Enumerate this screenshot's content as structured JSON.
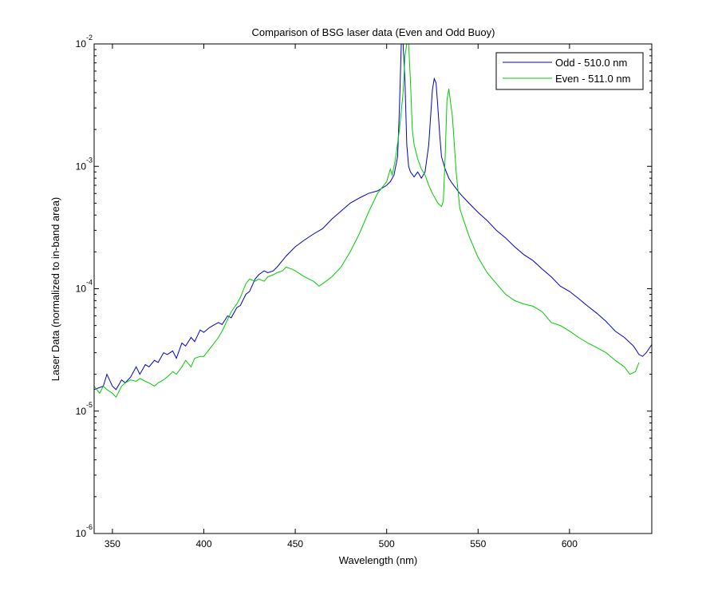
{
  "chart_data": {
    "type": "line",
    "title": "Comparison of BSG laser data (Even and Odd Buoy)",
    "xlabel": "Wavelength (nm)",
    "ylabel": "Laser Data (normalized to in-band area)",
    "xlim": [
      340,
      645
    ],
    "ylim": [
      1e-06,
      0.01
    ],
    "y_scale": "log",
    "x_ticks": [
      350,
      400,
      450,
      500,
      550,
      600
    ],
    "y_ticks": [
      {
        "base": "10",
        "exp": "-6",
        "value": 1e-06
      },
      {
        "base": "10",
        "exp": "-5",
        "value": 1e-05
      },
      {
        "base": "10",
        "exp": "-4",
        "value": 0.0001
      },
      {
        "base": "10",
        "exp": "-3",
        "value": 0.001
      },
      {
        "base": "10",
        "exp": "-2",
        "value": 0.01
      }
    ],
    "grid": false,
    "legend_position": "top-right",
    "series": [
      {
        "name": "Odd - 510.0 nm",
        "color": "#0000cc",
        "x": [
          340,
          345,
          347,
          350,
          352,
          355,
          357,
          360,
          363,
          365,
          368,
          370,
          373,
          375,
          378,
          380,
          383,
          385,
          388,
          390,
          393,
          395,
          398,
          400,
          403,
          405,
          408,
          410,
          413,
          415,
          418,
          420,
          423,
          425,
          428,
          430,
          433,
          435,
          438,
          440,
          443,
          445,
          450,
          455,
          460,
          465,
          470,
          475,
          480,
          485,
          490,
          495,
          500,
          502,
          504,
          506,
          507,
          508,
          509,
          510,
          511,
          512,
          513,
          515,
          517,
          519,
          521,
          523,
          525,
          526,
          527,
          528,
          529,
          530,
          532,
          534,
          536,
          540,
          545,
          550,
          555,
          560,
          565,
          570,
          575,
          580,
          585,
          590,
          595,
          600,
          605,
          610,
          615,
          620,
          625,
          630,
          635,
          638,
          640,
          642,
          645
        ],
        "y": [
          1.5e-05,
          1.6e-05,
          2e-05,
          1.6e-05,
          1.5e-05,
          1.8e-05,
          1.7e-05,
          1.9e-05,
          2.3e-05,
          2e-05,
          2.4e-05,
          2.3e-05,
          2.6e-05,
          2.5e-05,
          3e-05,
          2.9e-05,
          3.1e-05,
          2.7e-05,
          3.6e-05,
          3.4e-05,
          4e-05,
          3.7e-05,
          4.6e-05,
          4.4e-05,
          4.8e-05,
          5e-05,
          5.3e-05,
          5.1e-05,
          6e-05,
          5.8e-05,
          7e-05,
          7.3e-05,
          9e-05,
          9.5e-05,
          0.00012,
          0.00013,
          0.00014,
          0.000135,
          0.00014,
          0.00015,
          0.00017,
          0.000185,
          0.00022,
          0.00025,
          0.00028,
          0.00031,
          0.00037,
          0.00043,
          0.0005,
          0.00055,
          0.0006,
          0.00063,
          0.0007,
          0.00075,
          0.00085,
          0.0012,
          0.003,
          0.01,
          0.01,
          0.005,
          0.0015,
          0.001,
          0.0009,
          0.00082,
          0.0009,
          0.0008,
          0.0009,
          0.0015,
          0.0042,
          0.0052,
          0.0048,
          0.003,
          0.0018,
          0.0012,
          0.00095,
          0.0008,
          0.00072,
          0.0006,
          0.0005,
          0.00042,
          0.00036,
          0.0003,
          0.00026,
          0.00022,
          0.00019,
          0.00017,
          0.000145,
          0.000125,
          0.000105,
          9.5e-05,
          8.3e-05,
          7.2e-05,
          6.3e-05,
          5.4e-05,
          4.5e-05,
          4e-05,
          3.4e-05,
          2.9e-05,
          2.8e-05,
          3e-05,
          3.5e-05
        ]
      },
      {
        "name": "Even - 511.0 nm",
        "color": "#00cc00",
        "x": [
          340,
          343,
          345,
          347,
          350,
          352,
          355,
          357,
          360,
          363,
          365,
          368,
          370,
          373,
          375,
          378,
          380,
          383,
          385,
          388,
          390,
          393,
          395,
          398,
          400,
          403,
          405,
          408,
          410,
          413,
          415,
          418,
          420,
          423,
          425,
          428,
          430,
          433,
          435,
          438,
          440,
          443,
          445,
          448,
          450,
          455,
          460,
          463,
          465,
          470,
          475,
          480,
          485,
          490,
          495,
          500,
          502,
          503,
          504,
          505,
          507,
          509,
          510,
          511,
          512,
          513,
          514,
          515,
          517,
          519,
          521,
          523,
          525,
          528,
          530,
          531,
          532,
          533,
          534,
          536,
          538,
          540,
          545,
          550,
          555,
          560,
          565,
          570,
          575,
          580,
          585,
          590,
          595,
          600,
          605,
          610,
          615,
          620,
          625,
          630,
          633,
          636,
          638
        ],
        "y": [
          1.6e-05,
          1.4e-05,
          1.6e-05,
          1.5e-05,
          1.4e-05,
          1.3e-05,
          1.6e-05,
          1.7e-05,
          1.8e-05,
          1.75e-05,
          1.85e-05,
          1.75e-05,
          1.7e-05,
          1.6e-05,
          1.7e-05,
          1.8e-05,
          1.9e-05,
          2.1e-05,
          2e-05,
          2.3e-05,
          2.6e-05,
          2.3e-05,
          2.7e-05,
          2.8e-05,
          2.8e-05,
          3.2e-05,
          3.5e-05,
          4e-05,
          4.5e-05,
          5.6e-05,
          6.5e-05,
          7.5e-05,
          8.5e-05,
          0.00011,
          0.00012,
          0.000115,
          0.00012,
          0.000115,
          0.000125,
          0.00013,
          0.000135,
          0.00014,
          0.00015,
          0.000145,
          0.00014,
          0.000125,
          0.000115,
          0.000105,
          0.00011,
          0.000125,
          0.00015,
          0.0002,
          0.00028,
          0.00042,
          0.0006,
          0.00075,
          0.00095,
          0.00085,
          0.001,
          0.0012,
          0.002,
          0.004,
          0.008,
          0.01,
          0.01,
          0.005,
          0.002,
          0.0015,
          0.00115,
          0.00095,
          0.00085,
          0.0007,
          0.0006,
          0.0005,
          0.00047,
          0.00052,
          0.0012,
          0.0035,
          0.0043,
          0.0025,
          0.0009,
          0.00045,
          0.00027,
          0.00018,
          0.000135,
          0.00011,
          9e-05,
          8e-05,
          7.5e-05,
          7.2e-05,
          6.5e-05,
          5.3e-05,
          5e-05,
          4.5e-05,
          4e-05,
          3.6e-05,
          3.3e-05,
          3e-05,
          2.6e-05,
          2.3e-05,
          2e-05,
          2.1e-05,
          2.5e-05
        ]
      }
    ]
  }
}
